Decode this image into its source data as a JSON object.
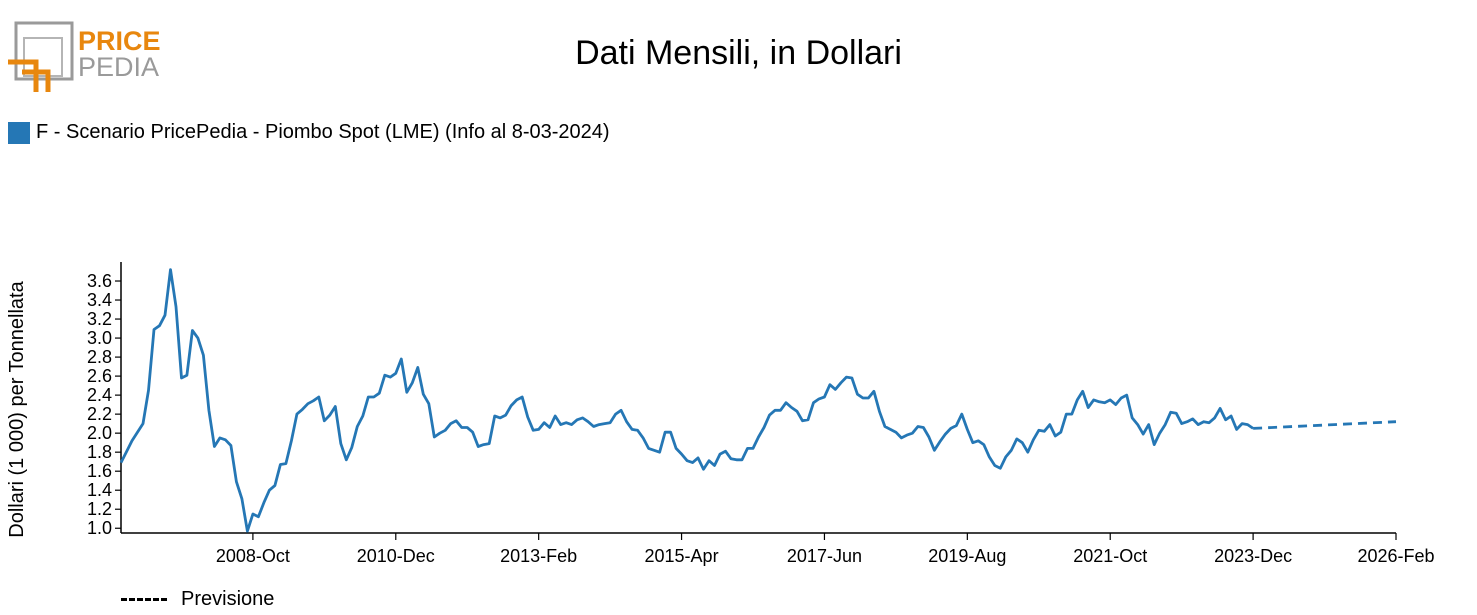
{
  "logo": {
    "word1": "PRICE",
    "word2": "PEDIA",
    "accent": "#e8870e",
    "gray": "#9a9a9a"
  },
  "chart_data": {
    "type": "line",
    "title": "Dati Mensili, in Dollari",
    "ylabel": "Dollari (1 000) per Tonnellata",
    "xlabel": "",
    "ylim": [
      0.95,
      3.8
    ],
    "yticks": [
      1.0,
      1.2,
      1.4,
      1.6,
      1.8,
      2.0,
      2.2,
      2.4,
      2.6,
      2.8,
      3.0,
      3.2,
      3.4,
      3.6
    ],
    "xrange": [
      "2006-10",
      "2026-02"
    ],
    "xticks": [
      "2008-Oct",
      "2010-Dec",
      "2013-Feb",
      "2015-Apr",
      "2017-Jun",
      "2019-Aug",
      "2021-Oct",
      "2023-Dec",
      "2026-Feb"
    ],
    "grid": false,
    "legend_position": "top-left",
    "series": [
      {
        "name": "F - Scenario PricePedia - Piombo Spot (LME) (Info al 8-03-2024)",
        "color": "#2577b5",
        "style": "solid",
        "points": [
          [
            "2006-10",
            1.69
          ],
          [
            "2006-12",
            1.92
          ],
          [
            "2007-02",
            2.1
          ],
          [
            "2007-03",
            2.45
          ],
          [
            "2007-04",
            3.09
          ],
          [
            "2007-05",
            3.13
          ],
          [
            "2007-06",
            3.24
          ],
          [
            "2007-07",
            3.72
          ],
          [
            "2007-08",
            3.33
          ],
          [
            "2007-09",
            2.58
          ],
          [
            "2007-10",
            2.61
          ],
          [
            "2007-11",
            3.08
          ],
          [
            "2007-12",
            3.0
          ],
          [
            "2008-01",
            2.82
          ],
          [
            "2008-02",
            2.24
          ],
          [
            "2008-03",
            1.86
          ],
          [
            "2008-04",
            1.95
          ],
          [
            "2008-05",
            1.93
          ],
          [
            "2008-06",
            1.87
          ],
          [
            "2008-07",
            1.49
          ],
          [
            "2008-08",
            1.31
          ],
          [
            "2008-09",
            0.97
          ],
          [
            "2008-10",
            1.15
          ],
          [
            "2008-11",
            1.12
          ],
          [
            "2008-12",
            1.27
          ],
          [
            "2009-01",
            1.4
          ],
          [
            "2009-02",
            1.45
          ],
          [
            "2009-03",
            1.67
          ],
          [
            "2009-04",
            1.68
          ],
          [
            "2009-05",
            1.92
          ],
          [
            "2009-06",
            2.2
          ],
          [
            "2009-07",
            2.25
          ],
          [
            "2009-08",
            2.31
          ],
          [
            "2009-09",
            2.34
          ],
          [
            "2009-10",
            2.38
          ],
          [
            "2009-11",
            2.13
          ],
          [
            "2009-12",
            2.19
          ],
          [
            "2010-01",
            2.28
          ],
          [
            "2010-02",
            1.89
          ],
          [
            "2010-03",
            1.72
          ],
          [
            "2010-04",
            1.85
          ],
          [
            "2010-05",
            2.07
          ],
          [
            "2010-06",
            2.18
          ],
          [
            "2010-07",
            2.38
          ],
          [
            "2010-08",
            2.38
          ],
          [
            "2010-09",
            2.42
          ],
          [
            "2010-10",
            2.61
          ],
          [
            "2010-11",
            2.59
          ],
          [
            "2010-12",
            2.63
          ],
          [
            "2011-01",
            2.78
          ],
          [
            "2011-02",
            2.43
          ],
          [
            "2011-03",
            2.53
          ],
          [
            "2011-04",
            2.69
          ],
          [
            "2011-05",
            2.41
          ],
          [
            "2011-06",
            2.31
          ],
          [
            "2011-07",
            1.96
          ],
          [
            "2011-08",
            2.0
          ],
          [
            "2011-09",
            2.03
          ],
          [
            "2011-10",
            2.1
          ],
          [
            "2011-11",
            2.13
          ],
          [
            "2011-12",
            2.06
          ],
          [
            "2012-01",
            2.06
          ],
          [
            "2012-02",
            2.01
          ],
          [
            "2012-03",
            1.86
          ],
          [
            "2012-04",
            1.88
          ],
          [
            "2012-05",
            1.89
          ],
          [
            "2012-06",
            2.18
          ],
          [
            "2012-07",
            2.16
          ],
          [
            "2012-08",
            2.19
          ],
          [
            "2012-09",
            2.29
          ],
          [
            "2012-10",
            2.35
          ],
          [
            "2012-11",
            2.38
          ],
          [
            "2012-12",
            2.17
          ],
          [
            "2013-01",
            2.03
          ],
          [
            "2013-02",
            2.04
          ],
          [
            "2013-03",
            2.11
          ],
          [
            "2013-04",
            2.06
          ],
          [
            "2013-05",
            2.18
          ],
          [
            "2013-06",
            2.09
          ],
          [
            "2013-07",
            2.11
          ],
          [
            "2013-08",
            2.09
          ],
          [
            "2013-09",
            2.14
          ],
          [
            "2013-10",
            2.16
          ],
          [
            "2013-11",
            2.12
          ],
          [
            "2013-12",
            2.07
          ],
          [
            "2014-01",
            2.09
          ],
          [
            "2014-02",
            2.1
          ],
          [
            "2014-03",
            2.11
          ],
          [
            "2014-04",
            2.2
          ],
          [
            "2014-05",
            2.24
          ],
          [
            "2014-06",
            2.12
          ],
          [
            "2014-07",
            2.04
          ],
          [
            "2014-08",
            2.03
          ],
          [
            "2014-09",
            1.95
          ],
          [
            "2014-10",
            1.84
          ],
          [
            "2014-11",
            1.82
          ],
          [
            "2014-12",
            1.8
          ],
          [
            "2015-01",
            2.01
          ],
          [
            "2015-02",
            2.01
          ],
          [
            "2015-03",
            1.84
          ],
          [
            "2015-04",
            1.78
          ],
          [
            "2015-05",
            1.71
          ],
          [
            "2015-06",
            1.69
          ],
          [
            "2015-07",
            1.74
          ],
          [
            "2015-08",
            1.62
          ],
          [
            "2015-09",
            1.71
          ],
          [
            "2015-10",
            1.66
          ],
          [
            "2015-11",
            1.78
          ],
          [
            "2015-12",
            1.81
          ],
          [
            "2016-01",
            1.73
          ],
          [
            "2016-02",
            1.72
          ],
          [
            "2016-03",
            1.72
          ],
          [
            "2016-04",
            1.84
          ],
          [
            "2016-05",
            1.84
          ],
          [
            "2016-06",
            1.96
          ],
          [
            "2016-07",
            2.06
          ],
          [
            "2016-08",
            2.19
          ],
          [
            "2016-09",
            2.24
          ],
          [
            "2016-10",
            2.24
          ],
          [
            "2016-11",
            2.32
          ],
          [
            "2016-12",
            2.27
          ],
          [
            "2017-01",
            2.23
          ],
          [
            "2017-02",
            2.13
          ],
          [
            "2017-03",
            2.14
          ],
          [
            "2017-04",
            2.32
          ],
          [
            "2017-05",
            2.36
          ],
          [
            "2017-06",
            2.38
          ],
          [
            "2017-07",
            2.51
          ],
          [
            "2017-08",
            2.46
          ],
          [
            "2017-09",
            2.53
          ],
          [
            "2017-10",
            2.59
          ],
          [
            "2017-11",
            2.58
          ],
          [
            "2017-12",
            2.41
          ],
          [
            "2018-01",
            2.37
          ],
          [
            "2018-02",
            2.37
          ],
          [
            "2018-03",
            2.44
          ],
          [
            "2018-04",
            2.23
          ],
          [
            "2018-05",
            2.07
          ],
          [
            "2018-06",
            2.04
          ],
          [
            "2018-07",
            2.01
          ],
          [
            "2018-08",
            1.95
          ],
          [
            "2018-09",
            1.98
          ],
          [
            "2018-10",
            2.0
          ],
          [
            "2018-11",
            2.07
          ],
          [
            "2018-12",
            2.06
          ],
          [
            "2019-01",
            1.96
          ],
          [
            "2019-02",
            1.82
          ],
          [
            "2019-03",
            1.91
          ],
          [
            "2019-04",
            1.99
          ],
          [
            "2019-05",
            2.05
          ],
          [
            "2019-06",
            2.08
          ],
          [
            "2019-07",
            2.2
          ],
          [
            "2019-08",
            2.04
          ],
          [
            "2019-09",
            1.9
          ],
          [
            "2019-10",
            1.92
          ],
          [
            "2019-11",
            1.88
          ],
          [
            "2019-12",
            1.75
          ],
          [
            "2020-01",
            1.66
          ],
          [
            "2020-02",
            1.63
          ],
          [
            "2020-03",
            1.75
          ],
          [
            "2020-04",
            1.82
          ],
          [
            "2020-05",
            1.94
          ],
          [
            "2020-06",
            1.9
          ],
          [
            "2020-07",
            1.8
          ],
          [
            "2020-08",
            1.93
          ],
          [
            "2020-09",
            2.03
          ],
          [
            "2020-10",
            2.02
          ],
          [
            "2020-11",
            2.09
          ],
          [
            "2020-12",
            1.97
          ],
          [
            "2021-01",
            2.01
          ],
          [
            "2021-02",
            2.2
          ],
          [
            "2021-03",
            2.2
          ],
          [
            "2021-04",
            2.35
          ],
          [
            "2021-05",
            2.44
          ],
          [
            "2021-06",
            2.27
          ],
          [
            "2021-07",
            2.35
          ],
          [
            "2021-08",
            2.33
          ],
          [
            "2021-09",
            2.32
          ],
          [
            "2021-10",
            2.35
          ],
          [
            "2021-11",
            2.3
          ],
          [
            "2021-12",
            2.37
          ],
          [
            "2022-01",
            2.4
          ],
          [
            "2022-02",
            2.16
          ],
          [
            "2022-03",
            2.09
          ],
          [
            "2022-04",
            1.99
          ],
          [
            "2022-05",
            2.09
          ],
          [
            "2022-06",
            1.88
          ],
          [
            "2022-07",
            2.0
          ],
          [
            "2022-08",
            2.09
          ],
          [
            "2022-09",
            2.22
          ],
          [
            "2022-10",
            2.21
          ],
          [
            "2022-11",
            2.1
          ],
          [
            "2022-12",
            2.12
          ],
          [
            "2023-01",
            2.15
          ],
          [
            "2023-02",
            2.09
          ],
          [
            "2023-03",
            2.12
          ],
          [
            "2023-04",
            2.11
          ],
          [
            "2023-05",
            2.16
          ],
          [
            "2023-06",
            2.26
          ],
          [
            "2023-07",
            2.14
          ],
          [
            "2023-08",
            2.18
          ],
          [
            "2023-09",
            2.04
          ],
          [
            "2023-10",
            2.1
          ],
          [
            "2023-11",
            2.09
          ],
          [
            "2023-12",
            2.05
          ]
        ]
      },
      {
        "name": "Previsione",
        "color": "#2577b5",
        "style": "dashed",
        "points": [
          [
            "2023-12",
            2.05
          ],
          [
            "2026-02",
            2.12
          ]
        ]
      }
    ]
  },
  "forecast_legend": {
    "label": "Previsione"
  }
}
